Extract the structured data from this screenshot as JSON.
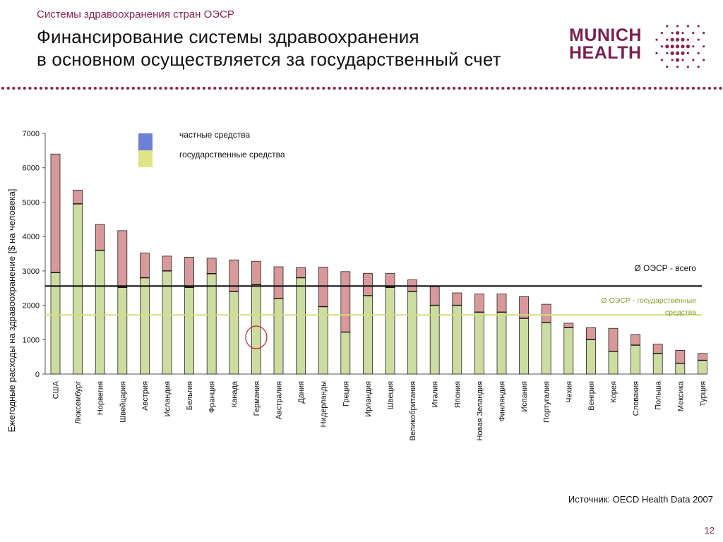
{
  "header": {
    "kicker": "Системы здравоохранения стран ОЭСР",
    "title_line1": "Финансирование системы здравоохранения",
    "title_line2": "в основном осуществляется за государственный счет",
    "logo_line1": "MUNICH",
    "logo_line2": "HEALTH"
  },
  "footer": {
    "source": "Источник: OECD Health Data 2007",
    "page_number": "12"
  },
  "colors": {
    "accent": "#8b2252",
    "public_fill": "#cddca0",
    "private_fill": "#d9999b",
    "legend_private": "#6e7fd6",
    "legend_public": "#e0e484",
    "oecd_total_line": "#111111",
    "oecd_public_line": "#d6dd7a"
  },
  "chart_data": {
    "type": "bar",
    "stacked": true,
    "ylabel": "Ежегодные расходы на здравоохранение [$ на человека]",
    "ylim": [
      0,
      7000
    ],
    "yticks": [
      0,
      1000,
      2000,
      3000,
      4000,
      5000,
      6000,
      7000
    ],
    "grid": false,
    "legend_position": "top-left",
    "categories": [
      "США",
      "Люксембург",
      "Норвегия",
      "Швейцария",
      "Австрия",
      "Исландия",
      "Бельгия",
      "Франция",
      "Канада",
      "Германия",
      "Австралия",
      "Дания",
      "Нидерланды",
      "Греция",
      "Ирландия",
      "Швеция",
      "Великобритания",
      "Италия",
      "Япония",
      "Новая Зеландия",
      "Финляндия",
      "Испания",
      "Португалия",
      "Чехия",
      "Венгрия",
      "Корея",
      "Словакия",
      "Польша",
      "Мексика",
      "Турция"
    ],
    "series": [
      {
        "name": "государственные средства",
        "color": "#cddca0",
        "legend_color": "#e0e484",
        "values": [
          2950,
          4950,
          3600,
          2520,
          2800,
          3000,
          2520,
          2920,
          2400,
          2600,
          2200,
          2800,
          1960,
          1220,
          2280,
          2520,
          2400,
          2000,
          2000,
          1800,
          1800,
          1620,
          1500,
          1350,
          1000,
          660,
          840,
          600,
          310,
          400
        ]
      },
      {
        "name": "частные средства",
        "color": "#d9999b",
        "legend_color": "#6e7fd6",
        "values": [
          3450,
          400,
          750,
          1650,
          720,
          430,
          880,
          450,
          920,
          680,
          920,
          300,
          1150,
          1760,
          650,
          410,
          340,
          540,
          360,
          530,
          530,
          630,
          530,
          130,
          350,
          670,
          310,
          270,
          380,
          200
        ]
      }
    ],
    "reference_lines": [
      {
        "label": "Ø ОЭСР - всего",
        "value": 2560,
        "color": "#111111"
      },
      {
        "label_line1": "Ø ОЭСР - государственные",
        "label_line2": "средства",
        "value": 1720,
        "color": "#d6dd7a"
      }
    ],
    "highlight": {
      "category": "Германия",
      "shape": "circle",
      "color": "#c0202a"
    }
  }
}
